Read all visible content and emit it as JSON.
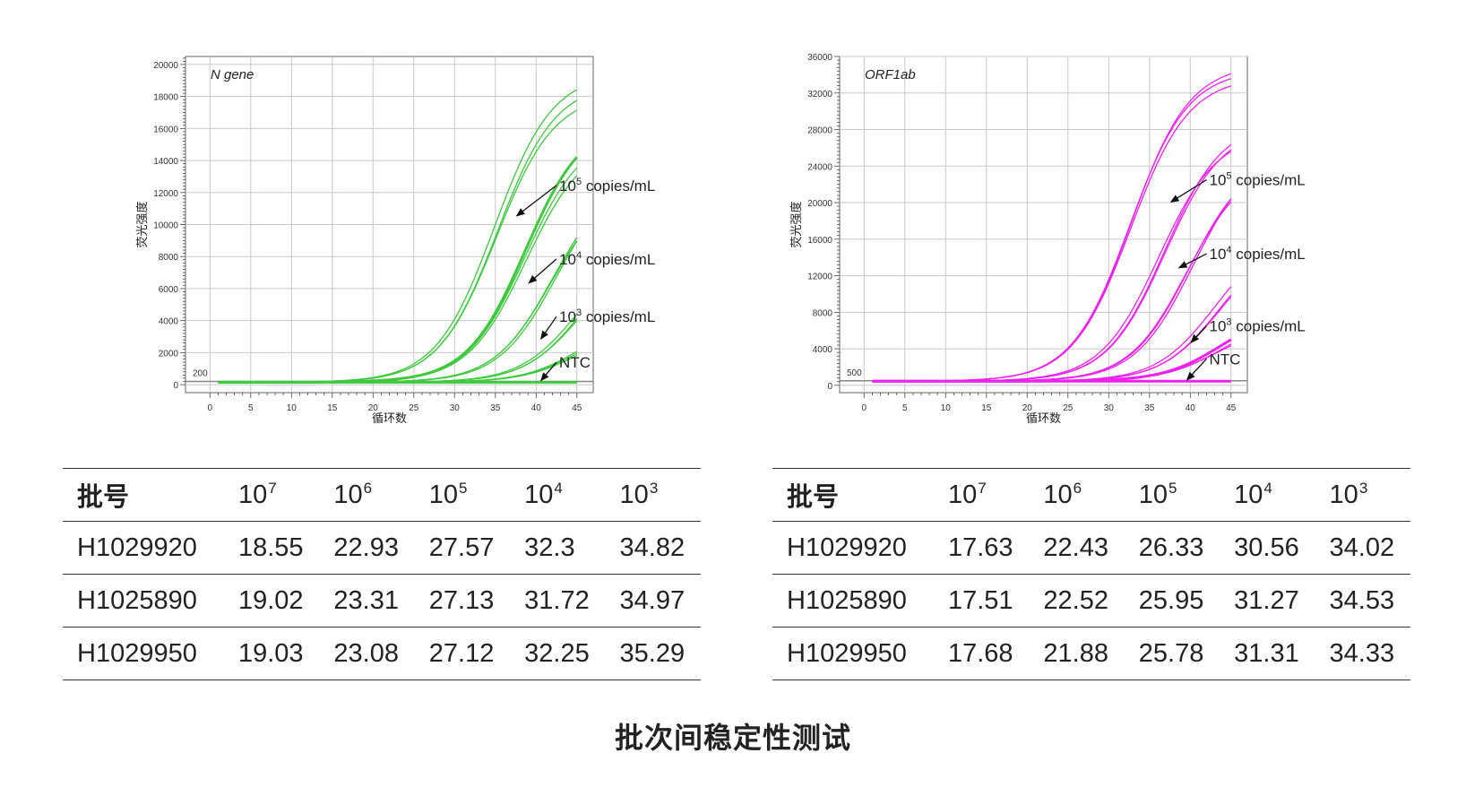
{
  "chart_data": [
    {
      "type": "line",
      "title": "N gene",
      "xlabel": "循环数",
      "ylabel": "荧光强度",
      "xlim": [
        -3,
        47
      ],
      "ylim": [
        -500,
        20500
      ],
      "x_ticks": [
        0,
        5,
        10,
        15,
        20,
        25,
        30,
        35,
        40,
        45
      ],
      "y_ticks": [
        0,
        2000,
        4000,
        6000,
        8000,
        10000,
        12000,
        14000,
        16000,
        18000,
        20000
      ],
      "y_tick_labels": [
        "0",
        "2000",
        "4000",
        "6000",
        "8000",
        "10000",
        "12000",
        "14000",
        "16000",
        "18000",
        "20000"
      ],
      "threshold_label": "200",
      "threshold_value": 200,
      "baseline": 150,
      "line_color": "#3ec93e",
      "grid": true,
      "series_groups": [
        {
          "ct": [
            18.55,
            19.02,
            19.03
          ],
          "plateau": [
            19500,
            18900,
            18200
          ],
          "thick": false
        },
        {
          "ct": [
            22.93,
            23.31,
            23.08
          ],
          "plateau": [
            16600,
            15300,
            15800
          ],
          "thick": true
        },
        {
          "ct": [
            27.57,
            27.13,
            27.12
          ],
          "plateau": [
            13400,
            13100,
            12700
          ],
          "thick": false
        },
        {
          "ct": [
            32.3,
            31.72,
            32.25
          ],
          "plateau": [
            9300,
            8900,
            8500
          ],
          "thick": false
        },
        {
          "ct": [
            34.82,
            34.97,
            35.29
          ],
          "plateau": [
            4400,
            4000,
            3800
          ],
          "thick": false
        }
      ],
      "annotations": [
        {
          "label": "10",
          "exp": "5",
          "suffix": " copies/mL",
          "text_at": [
            42.5,
            12450
          ],
          "arrow_to": [
            37.5,
            10500
          ]
        },
        {
          "label": "10",
          "exp": "4",
          "suffix": " copies/mL",
          "text_at": [
            42.5,
            7850
          ],
          "arrow_to": [
            39,
            6300
          ]
        },
        {
          "label": "10",
          "exp": "3",
          "suffix": " copies/mL",
          "text_at": [
            42.5,
            4250
          ],
          "arrow_to": [
            40.5,
            2800
          ]
        },
        {
          "label": "NTC",
          "exp": "",
          "suffix": "",
          "text_at": [
            42.5,
            1400
          ],
          "arrow_to": [
            40.5,
            200
          ]
        }
      ]
    },
    {
      "type": "line",
      "title": "ORF1ab",
      "xlabel": "循环数",
      "ylabel": "荧光强度",
      "xlim": [
        -3,
        47
      ],
      "ylim": [
        -800,
        36000
      ],
      "x_ticks": [
        0,
        5,
        10,
        15,
        20,
        25,
        30,
        35,
        40,
        45
      ],
      "y_ticks": [
        0,
        4000,
        8000,
        12000,
        16000,
        20000,
        24000,
        28000,
        32000,
        36000
      ],
      "y_tick_labels": [
        "0",
        "4000",
        "8000",
        "12000",
        "16000",
        "20000",
        "24000",
        "28000",
        "32000",
        "36000"
      ],
      "threshold_label": "500",
      "threshold_value": 500,
      "baseline": 450,
      "line_color": "#ee22ee",
      "grid": true,
      "series_groups": [
        {
          "ct": [
            17.63,
            17.51,
            17.68
          ],
          "plateau": [
            35200,
            34600,
            33800
          ],
          "thick": false
        },
        {
          "ct": [
            22.43,
            22.52,
            21.88
          ],
          "plateau": [
            29000,
            28400,
            27700
          ],
          "thick": false
        },
        {
          "ct": [
            26.33,
            25.95,
            25.78
          ],
          "plateau": [
            25800,
            25200,
            24400
          ],
          "thick": false
        },
        {
          "ct": [
            30.56,
            31.27,
            31.31
          ],
          "plateau": [
            16700,
            16300,
            15800
          ],
          "thick": false
        },
        {
          "ct": [
            34.02,
            34.53,
            34.33
          ],
          "plateau": [
            8300,
            7600,
            6800
          ],
          "thick": true
        }
      ],
      "annotations": [
        {
          "label": "10",
          "exp": "5",
          "suffix": " copies/mL",
          "text_at": [
            42,
            22500
          ],
          "arrow_to": [
            37.5,
            20000
          ]
        },
        {
          "label": "10",
          "exp": "4",
          "suffix": " copies/mL",
          "text_at": [
            42,
            14400
          ],
          "arrow_to": [
            38.5,
            12800
          ]
        },
        {
          "label": "10",
          "exp": "3",
          "suffix": " copies/mL",
          "text_at": [
            42,
            6500
          ],
          "arrow_to": [
            40,
            4600
          ]
        },
        {
          "label": "NTC",
          "exp": "",
          "suffix": "",
          "text_at": [
            42,
            2900
          ],
          "arrow_to": [
            39.5,
            500
          ]
        }
      ]
    }
  ],
  "tables": [
    {
      "header": {
        "batch": "批号",
        "cols": [
          {
            "base": "10",
            "exp": "7"
          },
          {
            "base": "10",
            "exp": "6"
          },
          {
            "base": "10",
            "exp": "5"
          },
          {
            "base": "10",
            "exp": "4"
          },
          {
            "base": "10",
            "exp": "3"
          }
        ]
      },
      "rows": [
        {
          "batch": "H1029920",
          "values": [
            "18.55",
            "22.93",
            "27.57",
            "32.3",
            "34.82"
          ]
        },
        {
          "batch": "H1025890",
          "values": [
            "19.02",
            "23.31",
            "27.13",
            "31.72",
            "34.97"
          ]
        },
        {
          "batch": "H1029950",
          "values": [
            "19.03",
            "23.08",
            "27.12",
            "32.25",
            "35.29"
          ]
        }
      ]
    },
    {
      "header": {
        "batch": "批号",
        "cols": [
          {
            "base": "10",
            "exp": "7"
          },
          {
            "base": "10",
            "exp": "6"
          },
          {
            "base": "10",
            "exp": "5"
          },
          {
            "base": "10",
            "exp": "4"
          },
          {
            "base": "10",
            "exp": "3"
          }
        ]
      },
      "rows": [
        {
          "batch": "H1029920",
          "values": [
            "17.63",
            "22.43",
            "26.33",
            "30.56",
            "34.02"
          ]
        },
        {
          "batch": "H1025890",
          "values": [
            "17.51",
            "22.52",
            "25.95",
            "31.27",
            "34.53"
          ]
        },
        {
          "batch": "H1029950",
          "values": [
            "17.68",
            "21.88",
            "25.78",
            "31.31",
            "34.33"
          ]
        }
      ]
    }
  ],
  "caption": "批次间稳定性测试"
}
